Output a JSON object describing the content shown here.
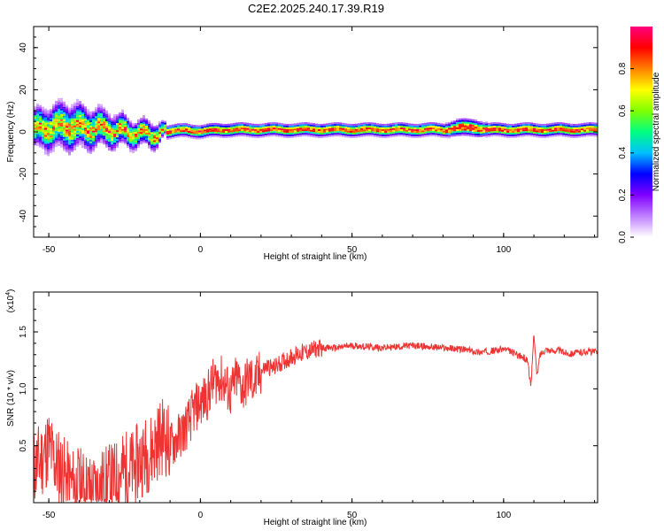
{
  "title": "C2E2.2025.240.17.39.R19",
  "chart_data": [
    {
      "type": "heatmap",
      "xlabel": "Height of straight line (km)",
      "ylabel": "Frequency (Hz)",
      "xlim": [
        -55,
        131
      ],
      "ylim": [
        -50,
        50
      ],
      "x_ticks": [
        -50,
        0,
        50,
        100
      ],
      "y_ticks": [
        -40,
        -20,
        0,
        20,
        40
      ],
      "x_tick_labels": [
        "-50",
        "0",
        "50",
        "100"
      ],
      "y_tick_labels": [
        "-40",
        "-20",
        "0",
        "20",
        "40"
      ],
      "ridge": {
        "description_values": "center frequency (Hz) and half-width (Hz) of the spectral ridge vs height (km)",
        "height_km": [
          -55,
          -50,
          -45,
          -40,
          -35,
          -30,
          -25,
          -20,
          -15,
          -12,
          -10,
          -5,
          0,
          5,
          10,
          20,
          30,
          40,
          50,
          60,
          70,
          80,
          85,
          90,
          95,
          100,
          105,
          110,
          115,
          120,
          125,
          131
        ],
        "center_hz": [
          1,
          2,
          3,
          2,
          2,
          1,
          0,
          -1,
          -1,
          0,
          0,
          1,
          0,
          1,
          1,
          1,
          1,
          1,
          1,
          1,
          1,
          1,
          2,
          2,
          1,
          1,
          1,
          1,
          1,
          1,
          1,
          1
        ],
        "half_width_hz": [
          9,
          10,
          11,
          10,
          9,
          8,
          7,
          6,
          6,
          3,
          3,
          3,
          3,
          3,
          3,
          3,
          3,
          3,
          3,
          3,
          3,
          3,
          4,
          4,
          3,
          3,
          3,
          3,
          3,
          3,
          3,
          3
        ]
      },
      "colorbar": {
        "label": "Normalized spectral amplitude",
        "range": [
          0.0,
          1.0
        ],
        "ticks": [
          0.0,
          0.2,
          0.4,
          0.6,
          0.8
        ],
        "tick_labels": [
          "0.0",
          "0.2",
          "0.4",
          "0.6",
          "0.8"
        ],
        "colormap": [
          "#ffffff",
          "#c080ff",
          "#8000ff",
          "#0000ff",
          "#00c0ff",
          "#00ff80",
          "#80ff00",
          "#ffff00",
          "#ff8000",
          "#ff0000",
          "#ff0080"
        ]
      }
    },
    {
      "type": "line",
      "xlabel": "Height of straight line (km)",
      "ylabel": "SNR (10 * v/v)",
      "y_multiplier": "(x10",
      "y_multiplier_exp": "4",
      "y_multiplier_close": ")",
      "xlim": [
        -55,
        131
      ],
      "ylim": [
        0,
        1.85
      ],
      "x_ticks": [
        -50,
        0,
        50,
        100
      ],
      "y_ticks": [
        0.5,
        1.0,
        1.5
      ],
      "x_tick_labels": [
        "-50",
        "0",
        "50",
        "100"
      ],
      "y_tick_labels": [
        "0.5",
        "1.0",
        "1.5"
      ],
      "series": [
        {
          "name": "SNR",
          "color": "#ee3333",
          "x": [
            -55,
            -52,
            -50,
            -48,
            -46,
            -44,
            -42,
            -40,
            -38,
            -36,
            -34,
            -32,
            -30,
            -28,
            -26,
            -24,
            -22,
            -20,
            -18,
            -16,
            -14,
            -12,
            -10,
            -8,
            -6,
            -4,
            -2,
            0,
            2,
            4,
            6,
            8,
            10,
            12,
            14,
            16,
            18,
            20,
            22,
            24,
            26,
            28,
            30,
            32,
            34,
            36,
            38,
            40,
            45,
            50,
            55,
            60,
            65,
            70,
            75,
            80,
            85,
            88,
            90,
            92,
            95,
            98,
            100,
            103,
            106,
            108,
            109,
            110,
            111,
            112,
            114,
            116,
            118,
            120,
            122,
            125,
            128,
            131
          ],
          "values": [
            0.3,
            0.4,
            0.5,
            0.35,
            0.3,
            0.2,
            0.15,
            0.15,
            0.12,
            0.1,
            0.12,
            0.15,
            0.18,
            0.2,
            0.28,
            0.3,
            0.3,
            0.38,
            0.42,
            0.45,
            0.55,
            0.6,
            0.5,
            0.55,
            0.62,
            0.7,
            0.82,
            0.88,
            0.92,
            1.05,
            1.1,
            1.05,
            0.95,
            1.1,
            1.0,
            1.1,
            1.05,
            1.15,
            1.2,
            1.18,
            1.22,
            1.25,
            1.28,
            1.3,
            1.32,
            1.33,
            1.35,
            1.36,
            1.36,
            1.38,
            1.37,
            1.36,
            1.37,
            1.38,
            1.37,
            1.36,
            1.35,
            1.34,
            1.33,
            1.32,
            1.33,
            1.34,
            1.35,
            1.32,
            1.28,
            1.25,
            1.0,
            1.5,
            1.1,
            1.3,
            1.35,
            1.33,
            1.34,
            1.32,
            1.31,
            1.32,
            1.33,
            1.32
          ]
        }
      ]
    }
  ]
}
